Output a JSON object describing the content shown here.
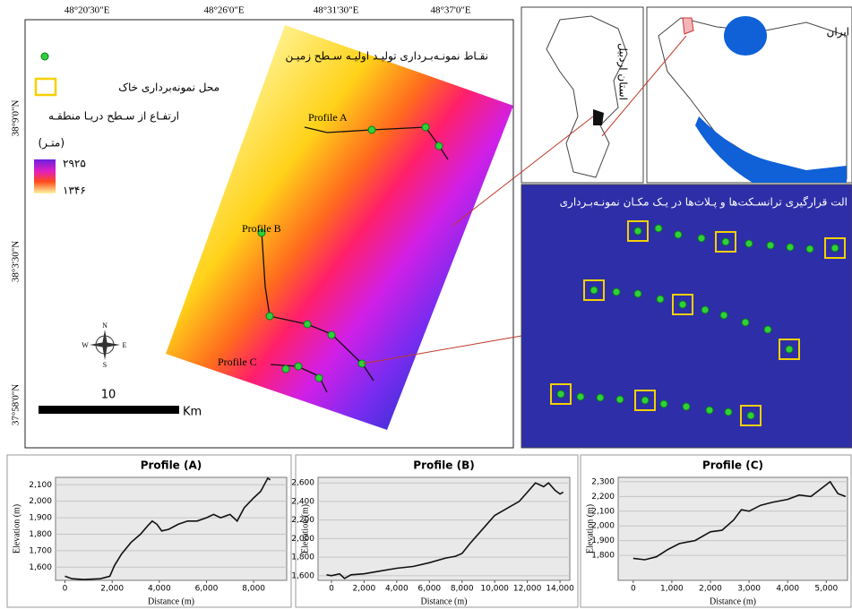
{
  "map": {
    "top_labels": [
      "48°20'30\"E",
      "48°26'0\"E",
      "48°31'30\"E",
      "48°37'0\"E"
    ],
    "left_labels": [
      "38°9'0\"N",
      "38°3'30\"N",
      "37°58'0\"N"
    ],
    "legend": {
      "points": "نقـاط نمونـه‌بـرداری تولیـد اولیـه سـطح زمیـن",
      "soil": "محل نمونه‌برداری خاک",
      "elevation": "ارتفـاع از سـطح دریـا منطقـه",
      "unit": "(متـر)",
      "high": "۲۹۲۵",
      "low": "۱۳۴۶"
    },
    "profiles": [
      "Profile A",
      "Profile B",
      "Profile C"
    ],
    "scale": {
      "distance": "10",
      "unit": "Km"
    },
    "compass": {
      "n": "N",
      "s": "S",
      "e": "E",
      "w": "W"
    },
    "inset_province": "استان اردبیل",
    "inset_country": "ایران",
    "detail_title": "الت قرارگیری ترانسـکت‌ها و پـلات‌ها در یـک مکـان نمونـه‌بـرداری"
  },
  "chart_data": [
    {
      "type": "line",
      "title": "Profile (A)",
      "x_label": "Distance (m)",
      "y_label": "Elevation (m)",
      "color": "#111111",
      "grid": true,
      "x": [
        0,
        300,
        800,
        1500,
        1900,
        2100,
        2400,
        2800,
        3200,
        3500,
        3700,
        3900,
        4100,
        4400,
        4800,
        5200,
        5600,
        6000,
        6300,
        6600,
        7000,
        7300,
        7600,
        8000,
        8300,
        8600,
        8700
      ],
      "values": [
        1545,
        1530,
        1525,
        1530,
        1545,
        1610,
        1680,
        1750,
        1800,
        1850,
        1880,
        1860,
        1820,
        1830,
        1860,
        1880,
        1880,
        1900,
        1920,
        1900,
        1920,
        1880,
        1960,
        2020,
        2060,
        2140,
        2130
      ],
      "xlim": [
        -400,
        9400
      ],
      "ylim": [
        1520,
        2145
      ],
      "xticks": [
        0,
        {
          "value": 2000,
          "label": "2,000"
        },
        {
          "value": 4000,
          "label": "4,000"
        },
        {
          "value": 6000,
          "label": "6,000"
        },
        {
          "value": 8000,
          "label": "8,000"
        }
      ],
      "yticks": [
        {
          "value": 1600,
          "label": "1,600"
        },
        {
          "value": 1700,
          "label": "1,700"
        },
        {
          "value": 1800,
          "label": "1,800"
        },
        {
          "value": 1900,
          "label": "1,900"
        },
        {
          "value": 2000,
          "label": "2,000"
        },
        {
          "value": 2100,
          "label": "2,100"
        }
      ]
    },
    {
      "type": "line",
      "title": "Profile (B)",
      "x_label": "Distance (m)",
      "y_label": "Elevation (m)",
      "color": "#111111",
      "grid": true,
      "x": [
        -300,
        0,
        500,
        800,
        1200,
        2000,
        3000,
        4000,
        5000,
        6000,
        7000,
        7600,
        8000,
        8500,
        9000,
        9500,
        10000,
        10500,
        11000,
        11500,
        12000,
        12500,
        13000,
        13300,
        13700,
        14000,
        14200
      ],
      "values": [
        1610,
        1600,
        1620,
        1570,
        1610,
        1620,
        1650,
        1680,
        1700,
        1740,
        1790,
        1810,
        1840,
        1950,
        2050,
        2150,
        2250,
        2300,
        2350,
        2400,
        2500,
        2600,
        2560,
        2600,
        2520,
        2480,
        2500
      ],
      "xlim": [
        -820,
        14600
      ],
      "ylim": [
        1550,
        2660
      ],
      "xticks": [
        0,
        {
          "value": 2000,
          "label": "2,000"
        },
        {
          "value": 4000,
          "label": "4,000"
        },
        {
          "value": 6000,
          "label": "6,000"
        },
        {
          "value": 8000,
          "label": "8,000"
        },
        {
          "value": 10000,
          "label": "10,000"
        },
        {
          "value": 12000,
          "label": "12,000"
        },
        {
          "value": 14000,
          "label": "14,000"
        }
      ],
      "yticks": [
        {
          "value": 1600,
          "label": "1,600"
        },
        {
          "value": 1800,
          "label": "1,800"
        },
        {
          "value": 2000,
          "label": "2,000"
        },
        {
          "value": 2200,
          "label": "2,200"
        },
        {
          "value": 2400,
          "label": "2,400"
        },
        {
          "value": 2600,
          "label": "2,600"
        }
      ]
    },
    {
      "type": "line",
      "title": "Profile (C)",
      "x_label": "Distance (m)",
      "y_label": "Elevation (m)",
      "color": "#111111",
      "grid": true,
      "x": [
        0,
        300,
        600,
        900,
        1200,
        1600,
        2000,
        2300,
        2600,
        2800,
        3000,
        3300,
        3600,
        4000,
        4300,
        4600,
        4900,
        5100,
        5300,
        5500
      ],
      "values": [
        1780,
        1770,
        1790,
        1840,
        1880,
        1900,
        1960,
        1970,
        2040,
        2110,
        2100,
        2140,
        2160,
        2180,
        2210,
        2200,
        2260,
        2300,
        2220,
        2200
      ],
      "xlim": [
        -390,
        5550
      ],
      "ylim": [
        1630,
        2330
      ],
      "xticks": [
        0,
        {
          "value": 1000,
          "label": "1,000"
        },
        {
          "value": 2000,
          "label": "2,000"
        },
        {
          "value": 3000,
          "label": "3,000"
        },
        {
          "value": 4000,
          "label": "4,000"
        },
        {
          "value": 5000,
          "label": "5,000"
        }
      ],
      "yticks": [
        {
          "value": 1800,
          "label": "1,800"
        },
        {
          "value": 1900,
          "label": "1,900"
        },
        {
          "value": 2000,
          "label": "2,000"
        },
        {
          "value": 2100,
          "label": "2,100"
        },
        {
          "value": 2200,
          "label": "2,200"
        },
        {
          "value": 2300,
          "label": "2,300"
        }
      ]
    }
  ]
}
